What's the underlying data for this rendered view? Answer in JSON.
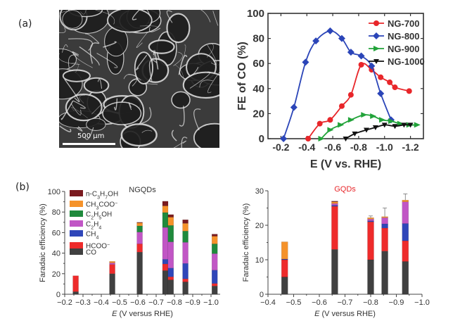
{
  "panel_labels": {
    "a": "(a)",
    "b": "(b)"
  },
  "sem_image": {
    "scale_bar_label": "500 µm",
    "description": "SEM image of porous graphene foam"
  },
  "chart_data": [
    {
      "id": "fe-co",
      "type": "line",
      "title": "",
      "xlabel": "E (V vs. RHE)",
      "ylabel": "FE of CO (%)",
      "xlim": [
        -0.1,
        -1.3
      ],
      "ylim": [
        0,
        100
      ],
      "xticks": [
        -0.2,
        -0.4,
        -0.6,
        -0.8,
        -1.0,
        -1.2
      ],
      "xtick_labels": [
        "-0.2",
        "-0.4",
        "-0.6",
        "-0.8",
        "-1.0",
        "-1.2"
      ],
      "yticks": [
        0,
        20,
        40,
        60,
        80,
        100
      ],
      "ytick_labels": [
        "0",
        "20",
        "40",
        "60",
        "80",
        "100"
      ],
      "legend_position": "top-right",
      "series": [
        {
          "name": "NG-700",
          "color": "#e8262a",
          "marker": "circle",
          "x": [
            -0.41,
            -0.5,
            -0.58,
            -0.67,
            -0.74,
            -0.82,
            -0.9,
            -0.97,
            -1.04,
            -1.08,
            -1.19
          ],
          "y": [
            0,
            12,
            15,
            26,
            35,
            59,
            55,
            49,
            45,
            41,
            38
          ]
        },
        {
          "name": "NG-800",
          "color": "#2b45b8",
          "marker": "diamond",
          "x": [
            -0.22,
            -0.3,
            -0.39,
            -0.47,
            -0.58,
            -0.67,
            -0.74,
            -0.82,
            -0.9,
            -0.97,
            -1.05
          ],
          "y": [
            0,
            25,
            61,
            78,
            86,
            80,
            69,
            66,
            58,
            36,
            15
          ]
        },
        {
          "name": "NG-900",
          "color": "#22a33a",
          "marker": "triangle-right",
          "x": [
            -0.51,
            -0.58,
            -0.66,
            -0.74,
            -0.84,
            -0.91,
            -0.98,
            -1.05,
            -1.12,
            -1.19,
            -1.25
          ],
          "y": [
            0,
            7,
            11,
            15,
            19,
            18,
            15,
            14,
            12,
            11,
            11
          ]
        },
        {
          "name": "NG-1000",
          "color": "#111111",
          "marker": "triangle-down",
          "x": [
            -0.7,
            -0.77,
            -0.86,
            -0.93,
            -1.0,
            -1.08,
            -1.15,
            -1.2
          ],
          "y": [
            0,
            4,
            7,
            9,
            11,
            10,
            11,
            11
          ]
        }
      ]
    },
    {
      "id": "ngqds",
      "type": "bar",
      "stacked": true,
      "title": "NGQDs",
      "title_color": "#333333",
      "xlabel_italic": "E",
      "xlabel_rest": " (V versus RHE)",
      "ylabel": "Faradaic efficiency (%)",
      "xlim": [
        -0.2,
        -1.05
      ],
      "ylim": [
        0,
        100
      ],
      "xticks": [
        -0.2,
        -0.3,
        -0.4,
        -0.5,
        -0.6,
        -0.7,
        -0.8,
        -0.9,
        -1.0
      ],
      "xtick_labels": [
        "−0.2",
        "−0.3",
        "−0.4",
        "−0.5",
        "−0.6",
        "−0.7",
        "−0.8",
        "−0.9",
        "−1.0"
      ],
      "yticks": [
        0,
        20,
        40,
        60,
        80,
        100
      ],
      "ytick_labels": [
        "0",
        "20",
        "40",
        "60",
        "80",
        "100"
      ],
      "legend_position": "top-left",
      "components": [
        {
          "name": "CO",
          "label_html": "CO",
          "color": "#404040"
        },
        {
          "name": "HCOO-",
          "label_html": "HCOO<tspan baseline-shift='super' font-size='7'>−</tspan>",
          "color": "#ee2b2b"
        },
        {
          "name": "CH4",
          "label_html": "CH<tspan baseline-shift='sub' font-size='7'>4</tspan>",
          "color": "#2f46b9"
        },
        {
          "name": "C2H4",
          "label_html": "C<tspan baseline-shift='sub' font-size='7'>2</tspan>H<tspan baseline-shift='sub' font-size='7'>4</tspan>",
          "color": "#c156c5"
        },
        {
          "name": "C2H5OH",
          "label_html": "C<tspan baseline-shift='sub' font-size='7'>2</tspan>H<tspan baseline-shift='sub' font-size='7'>5</tspan>OH",
          "color": "#1f8a3c"
        },
        {
          "name": "CH3COO-",
          "label_html": "CH<tspan baseline-shift='sub' font-size='7'>3</tspan>COO<tspan baseline-shift='super' font-size='7'>−</tspan>",
          "color": "#f5922a"
        },
        {
          "name": "n-C3H7OH",
          "label_html": "n-C<tspan baseline-shift='sub' font-size='7'>3</tspan>H<tspan baseline-shift='sub' font-size='7'>7</tspan>OH",
          "color": "#7a1a1f"
        }
      ],
      "bars": [
        {
          "x": -0.26,
          "values": [
            2.5,
            15.5,
            0,
            0,
            0,
            0,
            0
          ]
        },
        {
          "x": -0.46,
          "values": [
            20,
            9,
            0,
            1.5,
            0,
            1.5,
            0
          ]
        },
        {
          "x": -0.61,
          "values": [
            41,
            8,
            0,
            11.5,
            6,
            3,
            0.5
          ]
        },
        {
          "x": -0.75,
          "values": [
            23,
            6.5,
            4.5,
            31,
            14.5,
            6.5,
            4.5
          ]
        },
        {
          "x": -0.78,
          "values": [
            14,
            3,
            8.5,
            25.5,
            16,
            8,
            2.5
          ]
        },
        {
          "x": -0.86,
          "values": [
            12,
            3,
            15,
            20.5,
            11,
            7.5,
            3.5
          ]
        },
        {
          "x": -1.02,
          "values": [
            8,
            2.5,
            13,
            16,
            9.5,
            7.5,
            2
          ]
        }
      ],
      "legend_order": [
        "n-C3H7OH",
        "CH3COO-",
        "C2H5OH",
        "C2H4",
        "CH4",
        "HCOO-",
        "CO"
      ]
    },
    {
      "id": "gqds",
      "type": "bar",
      "stacked": true,
      "title": "GQDs",
      "title_color": "#e8262a",
      "xlabel_italic": "E",
      "xlabel_rest": " (V versus RHE)",
      "ylabel": "Faradaic efficiency (%)",
      "xlim": [
        -0.4,
        -1.0
      ],
      "ylim": [
        0,
        30
      ],
      "xticks": [
        -0.4,
        -0.5,
        -0.6,
        -0.7,
        -0.8,
        -0.9,
        -1.0
      ],
      "xtick_labels": [
        "−0.4",
        "−0.5",
        "−0.6",
        "−0.7",
        "−0.8",
        "−0.9",
        "−1.0"
      ],
      "yticks": [
        0,
        10,
        20,
        30
      ],
      "ytick_labels": [
        "0",
        "10",
        "20",
        "30"
      ],
      "components": [
        "CO",
        "HCOO-",
        "CH4",
        "C2H4",
        "C2H5OH",
        "CH3COO-",
        "n-C3H7OH"
      ],
      "bars": [
        {
          "x": -0.465,
          "values": [
            5,
            5,
            0.2,
            0,
            0,
            5,
            0
          ],
          "error": 0
        },
        {
          "x": -0.66,
          "values": [
            13,
            12.5,
            0.3,
            0.5,
            0,
            0.5,
            0.2
          ],
          "error": 0
        },
        {
          "x": -0.8,
          "values": [
            10,
            11,
            0.3,
            0.5,
            0,
            0.4,
            0
          ],
          "error": 0.5
        },
        {
          "x": -0.855,
          "values": [
            12.5,
            6.7,
            1.2,
            1.8,
            0,
            0.3,
            0
          ],
          "error": 2.5
        },
        {
          "x": -0.935,
          "values": [
            9.5,
            6,
            5,
            6.3,
            0,
            0.5,
            0
          ],
          "error": 1.8
        }
      ]
    }
  ]
}
